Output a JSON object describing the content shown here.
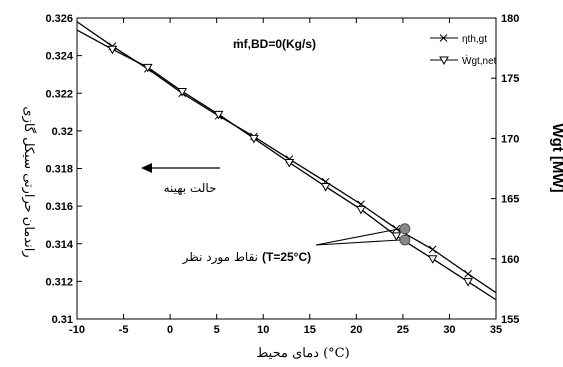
{
  "chart_data": {
    "type": "line",
    "xlabel": "دمای محیط (°C)",
    "ylabel": "راندمان حرارتی سیکل گازی",
    "y2label": "Ẇgt [MW]",
    "xlim": [
      -10,
      35
    ],
    "ylim": [
      0.31,
      0.326
    ],
    "y2lim": [
      155,
      180
    ],
    "xticks": [
      -10,
      -5,
      0,
      5,
      10,
      15,
      20,
      25,
      30,
      35
    ],
    "yticks": [
      "0.31",
      "0.312",
      "0.314",
      "0.316",
      "0.318",
      "0.32",
      "0.322",
      "0.324",
      "0.326"
    ],
    "y2ticks": [
      "155",
      "160",
      "165",
      "170",
      "175",
      "180"
    ],
    "annotation_top": "ṁf,BD=0(Kg/s)",
    "series": [
      {
        "name": "ηth,gt",
        "axis": "left",
        "marker": "x",
        "x": [
          -10,
          -6.2,
          -2.4,
          1.3,
          5.2,
          9.0,
          12.8,
          16.7,
          20.5,
          24.3,
          28.2,
          32.0,
          35
        ],
        "y": [
          0.3258,
          0.3245,
          0.3233,
          0.322,
          0.3208,
          0.3197,
          0.3185,
          0.3173,
          0.3161,
          0.3148,
          0.3137,
          0.3124,
          0.3114
        ]
      },
      {
        "name": "Ẇgt,net",
        "axis": "right",
        "marker": "triangle-down",
        "x": [
          -10,
          -6.2,
          -2.4,
          1.3,
          5.2,
          9.0,
          12.8,
          16.7,
          20.5,
          24.3,
          28.2,
          32.0,
          35
        ],
        "y": [
          179.0,
          177.4,
          175.9,
          173.9,
          172.0,
          170.0,
          168.0,
          166.0,
          164.1,
          161.9,
          160.0,
          158.1,
          156.6
        ]
      }
    ],
    "highlight_points": [
      {
        "x": 25,
        "y_left": 0.3148
      },
      {
        "x": 25,
        "y_left": 0.3142
      }
    ],
    "arrow_label": "حالت بهینه",
    "points_label": "نقاط مورد نظر",
    "points_sublabel": "(T=25°C)"
  }
}
